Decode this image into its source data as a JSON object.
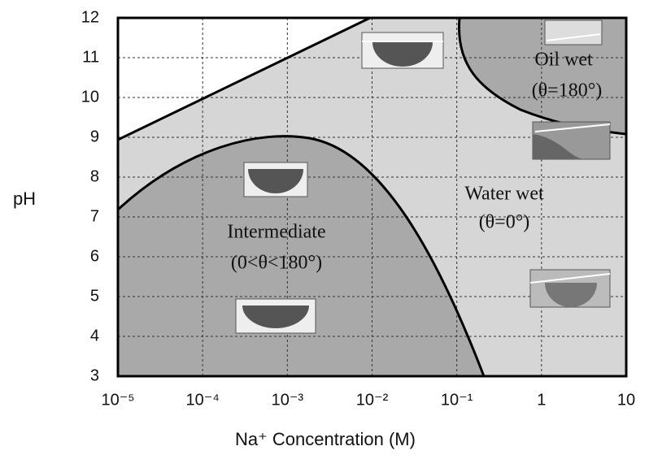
{
  "chart_data": {
    "type": "region",
    "x_label": "Na⁺ Concentration (M)",
    "y_label": "pH",
    "xscale": "log",
    "xlim": [
      1e-05,
      10
    ],
    "xticks": [
      {
        "value": 1e-05,
        "label": "10⁻⁵"
      },
      {
        "value": 0.0001,
        "label": "10⁻⁴"
      },
      {
        "value": 0.001,
        "label": "10⁻³"
      },
      {
        "value": 0.01,
        "label": "10⁻²"
      },
      {
        "value": 0.1,
        "label": "10⁻¹"
      },
      1,
      10
    ],
    "ylim": [
      3,
      12
    ],
    "yticks": [
      3,
      4,
      5,
      6,
      7,
      8,
      9,
      10,
      11,
      12
    ],
    "grid": true,
    "annotations": [
      "Oil wet",
      "(θ=180°)",
      "Water wet",
      "(θ=0°)",
      "Intermediate",
      "(0<θ<180°)"
    ]
  }
}
